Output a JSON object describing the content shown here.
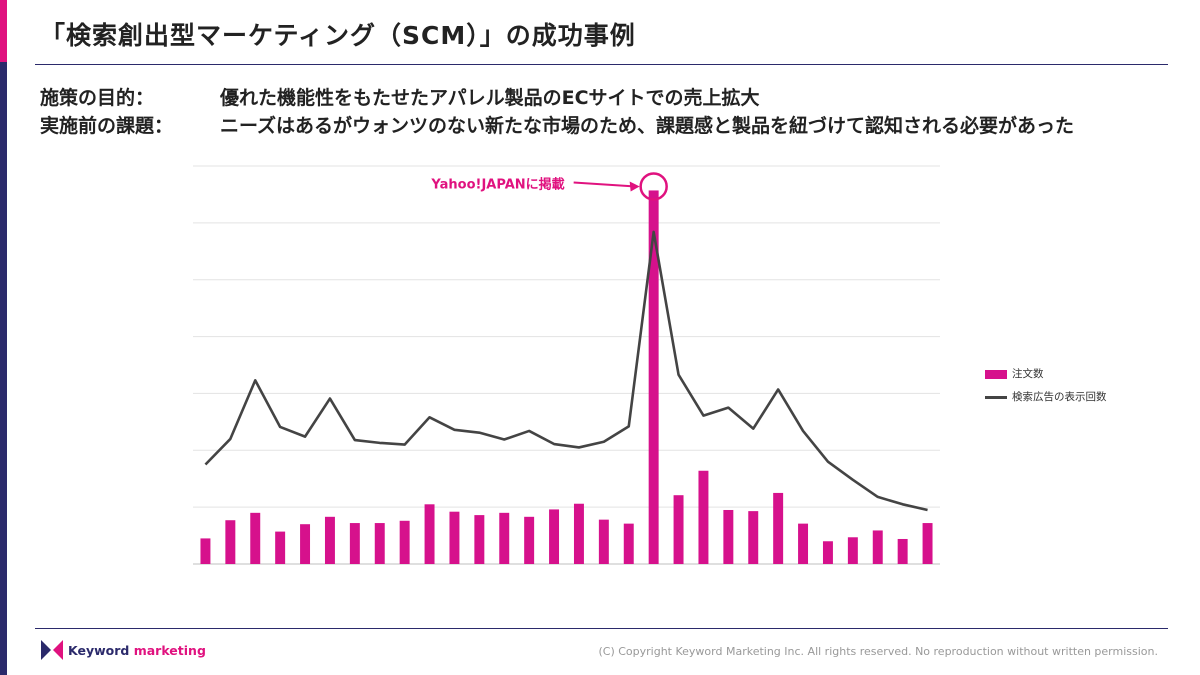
{
  "header": {
    "title": "「検索創出型マーケティング（SCM）」の成功事例"
  },
  "description": {
    "objective_label": "施策の目的：",
    "objective_text": "優れた機能性をもたせたアパレル製品のECサイトでの売上拡大",
    "issue_label": "実施前の課題：",
    "issue_text": "ニーズはあるがウォンツのない新たな市場のため、課題感と製品を紐づけて認知される必要があった"
  },
  "footer": {
    "brand_word1": "Keyword",
    "brand_word2": "marketing",
    "copyright": "(C) Copyright Keyword Marketing Inc. All rights reserved. No reproduction without written permission."
  },
  "chart_data": {
    "type": "bar+line",
    "title": "",
    "xlabel": "",
    "ylabel": "",
    "ylim": [
      0,
      7
    ],
    "grid": true,
    "legend_position": "right",
    "annotation": {
      "text": "Yahoo!JAPANに掲載",
      "target_index": 18,
      "series": "注文数",
      "color": "#e0127f"
    },
    "series": [
      {
        "name": "注文数",
        "type": "bar",
        "color": "#d6118c",
        "values": [
          0.45,
          0.77,
          0.9,
          0.57,
          0.7,
          0.83,
          0.72,
          0.72,
          0.76,
          1.05,
          0.92,
          0.86,
          0.9,
          0.83,
          0.96,
          1.06,
          0.78,
          0.71,
          6.57,
          1.21,
          1.64,
          0.95,
          0.93,
          1.25,
          0.71,
          0.4,
          0.47,
          0.59,
          0.44,
          0.72
        ]
      },
      {
        "name": "検索広告の表示回数",
        "type": "line",
        "color": "#444444",
        "values": [
          1.75,
          2.2,
          3.23,
          2.41,
          2.24,
          2.91,
          2.18,
          2.13,
          2.1,
          2.58,
          2.36,
          2.31,
          2.19,
          2.34,
          2.11,
          2.05,
          2.15,
          2.42,
          5.84,
          3.33,
          2.61,
          2.75,
          2.38,
          3.07,
          2.34,
          1.8,
          1.48,
          1.18,
          1.05,
          0.95
        ]
      }
    ]
  }
}
